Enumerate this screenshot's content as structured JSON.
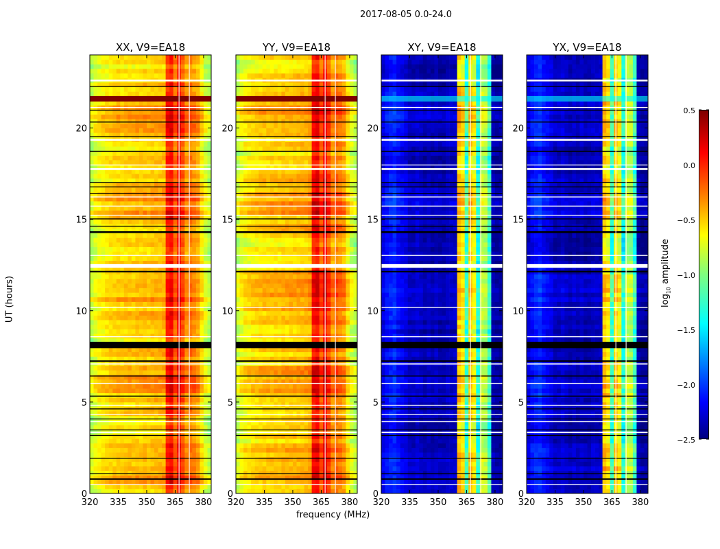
{
  "chart_data": {
    "type": "heatmap",
    "title": "2017-08-05 0.0-24.0",
    "xlabel": "frequency (MHz)",
    "ylabel": "UT (hours)",
    "xlim": [
      320,
      384
    ],
    "ylim": [
      0,
      24
    ],
    "xticks": [
      320,
      335,
      350,
      365,
      380
    ],
    "yticks": [
      0,
      5,
      10,
      15,
      20
    ],
    "freq_bin_edges_start": 320,
    "freq_bin_width": 2,
    "colorbar": {
      "label": "log10 amplitude",
      "label_main": "log",
      "label_sub": "10",
      "label_rest": " amplitude",
      "range": [
        -2.5,
        0.5
      ],
      "ticks": [
        "0.5",
        "0.0",
        "−0.5",
        "−1.0",
        "−1.5",
        "−2.0",
        "−2.5"
      ],
      "tick_values": [
        0.5,
        0.0,
        -0.5,
        -1.0,
        -1.5,
        -2.0,
        -2.5
      ],
      "colormap": "jet"
    },
    "panels": [
      {
        "title": "XX, V9=EA18",
        "profile": [
          -0.78,
          -0.68,
          -0.62,
          -0.58,
          -0.55,
          -0.52,
          -0.5,
          -0.48,
          -0.5,
          -0.47,
          -0.46,
          -0.48,
          -0.45,
          -0.46,
          -0.44,
          -0.45,
          -0.43,
          -0.42,
          -0.42,
          -0.4,
          0.05,
          0.12,
          -0.15,
          0.1,
          -0.08,
          -0.3,
          -0.22,
          -0.28,
          -0.35,
          -0.55,
          -0.72,
          -0.82
        ],
        "flag_color": "#7f0000"
      },
      {
        "title": "YY, V9=EA18",
        "profile": [
          -0.78,
          -0.66,
          -0.6,
          -0.57,
          -0.54,
          -0.52,
          -0.5,
          -0.48,
          -0.49,
          -0.47,
          -0.46,
          -0.47,
          -0.45,
          -0.45,
          -0.44,
          -0.44,
          -0.43,
          -0.42,
          -0.41,
          -0.38,
          0.1,
          0.15,
          -0.1,
          0.15,
          -0.05,
          -0.28,
          -0.2,
          -0.25,
          -0.33,
          -0.55,
          -0.72,
          -0.82
        ],
        "flag_color": "#7f0000"
      },
      {
        "title": "XY, V9=EA18",
        "profile": [
          -2.2,
          -2.1,
          -2.05,
          -2.0,
          -2.1,
          -2.15,
          -2.2,
          -2.3,
          -2.3,
          -2.25,
          -2.3,
          -2.35,
          -2.3,
          -2.35,
          -2.3,
          -2.35,
          -2.35,
          -2.3,
          -2.3,
          -2.3,
          -0.45,
          -0.55,
          -1.2,
          -0.5,
          -0.65,
          -1.3,
          -0.8,
          -0.85,
          -1.2,
          -2.35,
          -2.4,
          -2.4
        ],
        "flag_color": "#00ffff"
      },
      {
        "title": "YX, V9=EA18",
        "profile": [
          -2.2,
          -2.1,
          -2.05,
          -2.0,
          -2.1,
          -2.15,
          -2.2,
          -2.3,
          -2.3,
          -2.25,
          -2.3,
          -2.35,
          -2.3,
          -2.35,
          -2.3,
          -2.35,
          -2.35,
          -2.3,
          -2.3,
          -2.3,
          -0.45,
          -0.55,
          -1.2,
          -0.5,
          -0.65,
          -1.3,
          -0.8,
          -0.85,
          -1.2,
          -2.35,
          -2.4,
          -2.4
        ],
        "flag_color": "#00ffff"
      }
    ],
    "masked_times_black": [
      [
        0.75,
        0.82
      ],
      [
        1.05,
        1.1
      ],
      [
        1.9,
        1.95
      ],
      [
        3.15,
        3.2
      ],
      [
        3.45,
        3.5
      ],
      [
        4.05,
        4.1
      ],
      [
        4.6,
        4.65
      ],
      [
        5.3,
        5.35
      ],
      [
        6.4,
        6.45
      ],
      [
        7.2,
        7.28
      ],
      [
        7.95,
        8.3
      ],
      [
        12.1,
        12.18
      ],
      [
        14.25,
        14.35
      ],
      [
        14.6,
        14.65
      ],
      [
        15.0,
        15.05
      ],
      [
        16.4,
        16.45
      ],
      [
        16.75,
        16.8
      ],
      [
        17.0,
        17.05
      ],
      [
        18.7,
        18.75
      ],
      [
        19.5,
        19.55
      ],
      [
        20.3,
        20.35
      ],
      [
        20.95,
        21.0
      ],
      [
        22.25,
        22.3
      ]
    ],
    "masked_times_white": [
      [
        0.45,
        0.5
      ],
      [
        3.3,
        3.38
      ],
      [
        3.9,
        3.95
      ],
      [
        4.3,
        4.35
      ],
      [
        4.8,
        4.85
      ],
      [
        6.0,
        6.05
      ],
      [
        7.05,
        7.12
      ],
      [
        8.55,
        8.6
      ],
      [
        10.15,
        10.2
      ],
      [
        12.35,
        12.55
      ],
      [
        13.0,
        13.05
      ],
      [
        15.2,
        15.25
      ],
      [
        15.7,
        15.75
      ],
      [
        16.2,
        16.25
      ],
      [
        17.7,
        17.8
      ],
      [
        17.95,
        18.0
      ],
      [
        19.3,
        19.4
      ],
      [
        21.1,
        21.15
      ],
      [
        22.55,
        22.65
      ]
    ],
    "rfi_event_times": [
      [
        21.45,
        21.75
      ]
    ]
  }
}
